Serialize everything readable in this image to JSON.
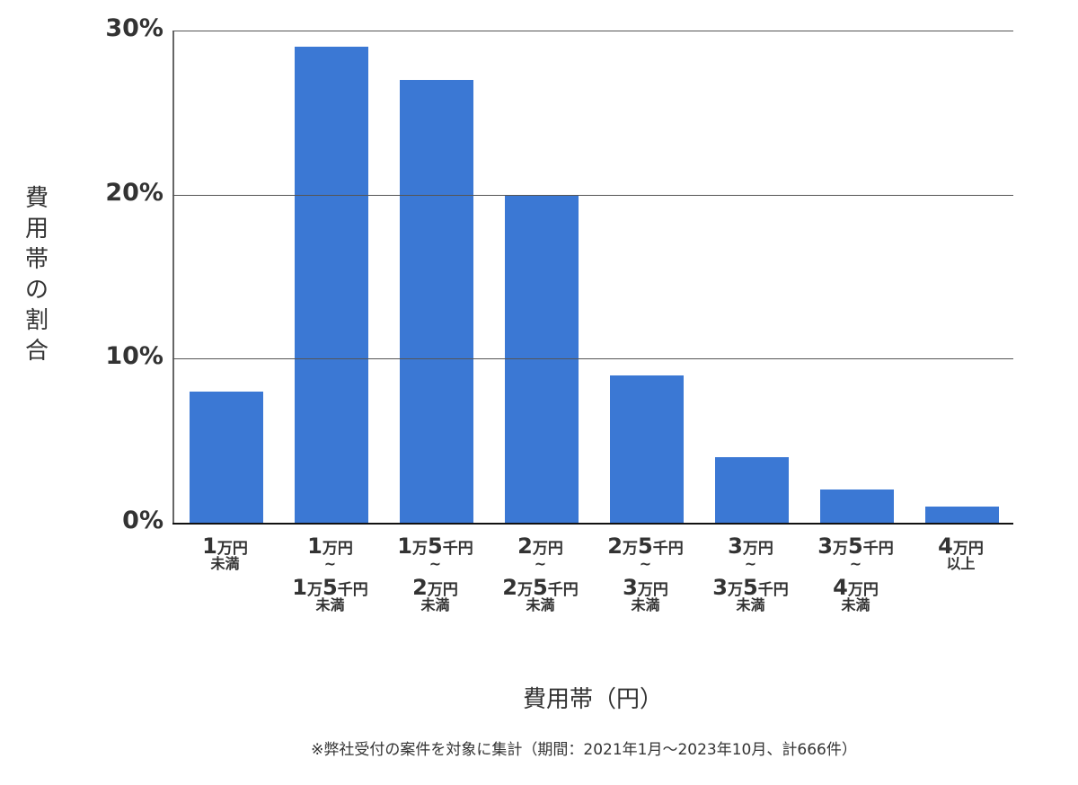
{
  "chart_data": {
    "type": "bar",
    "title": "",
    "xlabel": "費用帯（円）",
    "ylabel": "費用帯の割合",
    "ylim": [
      0,
      30
    ],
    "yticks": [
      "0%",
      "10%",
      "20%",
      "30%"
    ],
    "grid": true,
    "bar_color": "#3B78D4",
    "categories": [
      "1万円未満",
      "1万円～1万5千円未満",
      "1万5千円～2万円未満",
      "2万円～2万5千円未満",
      "2万5千円～3万円未満",
      "3万円～3万5千円未満",
      "3万5千円～4万円未満",
      "4万円以上"
    ],
    "values": [
      8,
      29,
      27,
      20,
      9,
      4,
      2,
      1
    ],
    "unit": "%",
    "note": "※弊社受付の案件を対象に集計（期間：2021年1月～2023年10月、計666件）"
  },
  "axis": {
    "ylabel_chars": [
      "費",
      "用",
      "帯",
      "の",
      "割",
      "合"
    ],
    "ticks": [
      {
        "label": "30%",
        "value": 30
      },
      {
        "label": "20%",
        "value": 20
      },
      {
        "label": "10%",
        "value": 10
      },
      {
        "label": "0%",
        "value": 0
      }
    ],
    "xlabel": "費用帯（円）"
  },
  "labels": [
    {
      "top": [
        {
          "n": "1",
          "u": "万円"
        }
      ],
      "wave": "",
      "bottom": [],
      "under": "未満"
    },
    {
      "top": [
        {
          "n": "1",
          "u": "万円"
        }
      ],
      "wave": "～",
      "bottom": [
        {
          "n": "1",
          "u": "万"
        },
        {
          "n": "5",
          "u": "千円"
        }
      ],
      "under": "未満"
    },
    {
      "top": [
        {
          "n": "1",
          "u": "万"
        },
        {
          "n": "5",
          "u": "千円"
        }
      ],
      "wave": "～",
      "bottom": [
        {
          "n": "2",
          "u": "万円"
        }
      ],
      "under": "未満"
    },
    {
      "top": [
        {
          "n": "2",
          "u": "万円"
        }
      ],
      "wave": "～",
      "bottom": [
        {
          "n": "2",
          "u": "万"
        },
        {
          "n": "5",
          "u": "千円"
        }
      ],
      "under": "未満"
    },
    {
      "top": [
        {
          "n": "2",
          "u": "万"
        },
        {
          "n": "5",
          "u": "千円"
        }
      ],
      "wave": "～",
      "bottom": [
        {
          "n": "3",
          "u": "万円"
        }
      ],
      "under": "未満"
    },
    {
      "top": [
        {
          "n": "3",
          "u": "万円"
        }
      ],
      "wave": "～",
      "bottom": [
        {
          "n": "3",
          "u": "万"
        },
        {
          "n": "5",
          "u": "千円"
        }
      ],
      "under": "未満"
    },
    {
      "top": [
        {
          "n": "3",
          "u": "万"
        },
        {
          "n": "5",
          "u": "千円"
        }
      ],
      "wave": "～",
      "bottom": [
        {
          "n": "4",
          "u": "万円"
        }
      ],
      "under": "未満"
    },
    {
      "top": [
        {
          "n": "4",
          "u": "万円"
        }
      ],
      "wave": "",
      "bottom": [],
      "under": "以上"
    }
  ],
  "footnote": "※弊社受付の案件を対象に集計（期間：2021年1月～2023年10月、計666件）"
}
